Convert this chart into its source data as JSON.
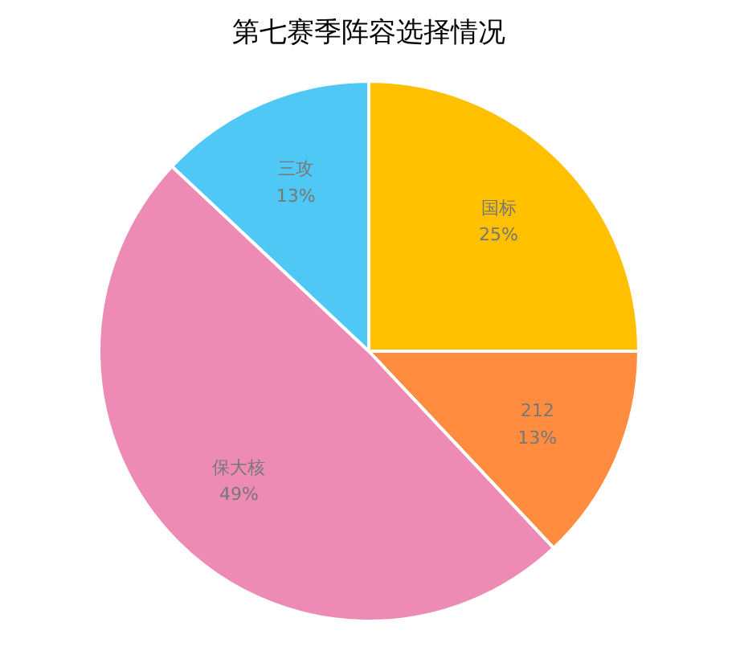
{
  "chart_data": {
    "type": "pie",
    "title": "第七赛季阵容选择情况",
    "categories": [
      "国标",
      "212",
      "保大核",
      "三攻"
    ],
    "values": [
      25,
      13,
      49,
      13
    ],
    "value_labels": [
      "25%",
      "13%",
      "49%",
      "13%"
    ],
    "colors": [
      "#ffc000",
      "#ff8c3f",
      "#ee8bb4",
      "#4fc8f5"
    ]
  }
}
